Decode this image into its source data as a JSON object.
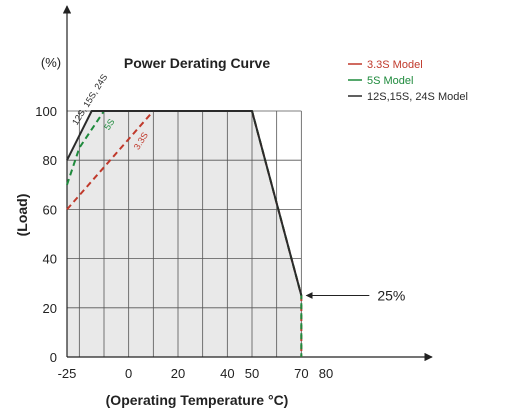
{
  "chart_data": {
    "type": "line",
    "title": "Power Derating Curve",
    "xlabel": "(Operating Temperature °C)",
    "ylabel": "(Load)",
    "yunit": "(%)",
    "xlim": [
      -25,
      80
    ],
    "ylim": [
      0,
      100
    ],
    "x_grid_lines": [
      -20,
      -10,
      0,
      10,
      20,
      30,
      40,
      50,
      60,
      70
    ],
    "y_grid_lines": [
      20,
      40,
      60,
      80,
      100
    ],
    "x_tick_labels": [
      {
        "value": -25,
        "label": "-25"
      },
      {
        "value": 0,
        "label": "0"
      },
      {
        "value": 20,
        "label": "20"
      },
      {
        "value": 40,
        "label": "40"
      },
      {
        "value": 50,
        "label": "50"
      },
      {
        "value": 70,
        "label": "70"
      },
      {
        "value": 80,
        "label": "80"
      }
    ],
    "y_tick_labels": [
      {
        "value": 0,
        "label": "0"
      },
      {
        "value": 20,
        "label": "20"
      },
      {
        "value": 40,
        "label": "40"
      },
      {
        "value": 60,
        "label": "60"
      },
      {
        "value": 80,
        "label": "80"
      },
      {
        "value": 100,
        "label": "100"
      }
    ],
    "grid": true,
    "legend_position": "top-right",
    "shaded_region": {
      "color": "#e9e9e9",
      "points": [
        [
          -25,
          0
        ],
        [
          -25,
          80
        ],
        [
          -15,
          100
        ],
        [
          50,
          100
        ],
        [
          70,
          25
        ],
        [
          70,
          0
        ]
      ]
    },
    "series": [
      {
        "name": "3.3S Model",
        "color": "#c0392b",
        "dash": "dashed",
        "inline_label": "3.3S",
        "x": [
          -25,
          10,
          50,
          70,
          70
        ],
        "y": [
          60,
          100,
          100,
          25,
          0
        ]
      },
      {
        "name": "5S Model",
        "color": "#1e8a3c",
        "dash": "dashed",
        "inline_label": "5S",
        "x": [
          -25,
          -20,
          -10,
          50,
          70,
          70
        ],
        "y": [
          70,
          85,
          100,
          100,
          25,
          0
        ]
      },
      {
        "name": "12S,15S, 24S Model",
        "color": "#2b2b2b",
        "dash": "solid",
        "inline_label": "12S, 15S, 24S",
        "x": [
          -25,
          -15,
          50,
          70
        ],
        "y": [
          80,
          100,
          100,
          25
        ]
      }
    ],
    "annotations": [
      {
        "text": "25%",
        "x": 70,
        "y": 25
      }
    ]
  }
}
